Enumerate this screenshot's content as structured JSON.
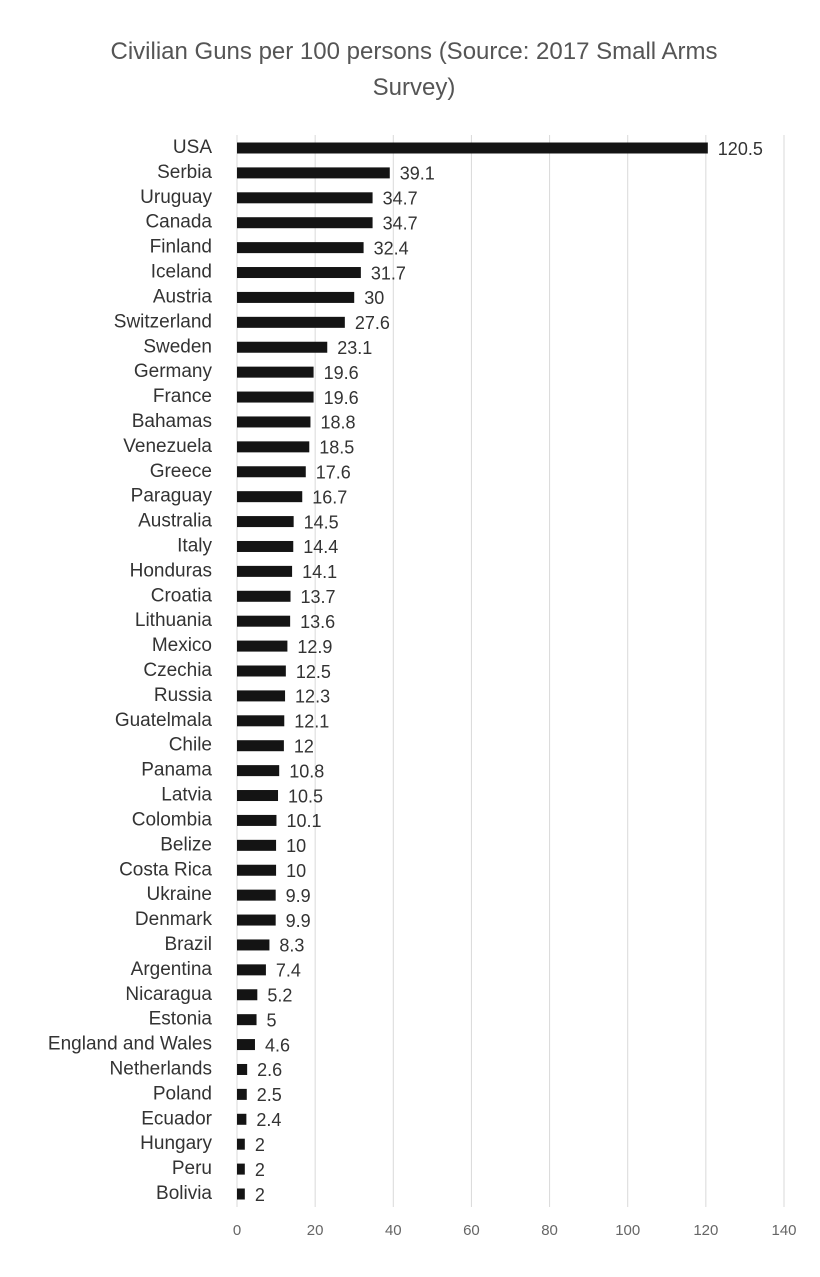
{
  "chart_data": {
    "type": "hbar",
    "title": "Civilian Guns per 100 persons (Source: 2017 Small Arms Survey)",
    "categories": [
      "USA",
      "Serbia",
      "Uruguay",
      "Canada",
      "Finland",
      "Iceland",
      "Austria",
      "Switzerland",
      "Sweden",
      "Germany",
      "France",
      "Bahamas",
      "Venezuela",
      "Greece",
      "Paraguay",
      "Australia",
      "Italy",
      "Honduras",
      "Croatia",
      "Lithuania",
      "Mexico",
      "Czechia",
      "Russia",
      "Guatelmala",
      "Chile",
      "Panama",
      "Latvia",
      "Colombia",
      "Belize",
      "Costa Rica",
      "Ukraine",
      "Denmark",
      "Brazil",
      "Argentina",
      "Nicaragua",
      "Estonia",
      "England and Wales",
      "Netherlands",
      "Poland",
      "Ecuador",
      "Hungary",
      "Peru",
      "Bolivia"
    ],
    "values": [
      120.5,
      39.1,
      34.7,
      34.7,
      32.4,
      31.7,
      30,
      27.6,
      23.1,
      19.6,
      19.6,
      18.8,
      18.5,
      17.6,
      16.7,
      14.5,
      14.4,
      14.1,
      13.7,
      13.6,
      12.9,
      12.5,
      12.3,
      12.1,
      12,
      10.8,
      10.5,
      10.1,
      10,
      10,
      9.9,
      9.9,
      8.3,
      7.4,
      5.2,
      5,
      4.6,
      2.6,
      2.5,
      2.4,
      2,
      2,
      2
    ],
    "color": "#141414",
    "xlim": [
      0,
      140
    ],
    "xticks": [
      0,
      20,
      40,
      60,
      80,
      100,
      120,
      140
    ],
    "grid": true
  }
}
